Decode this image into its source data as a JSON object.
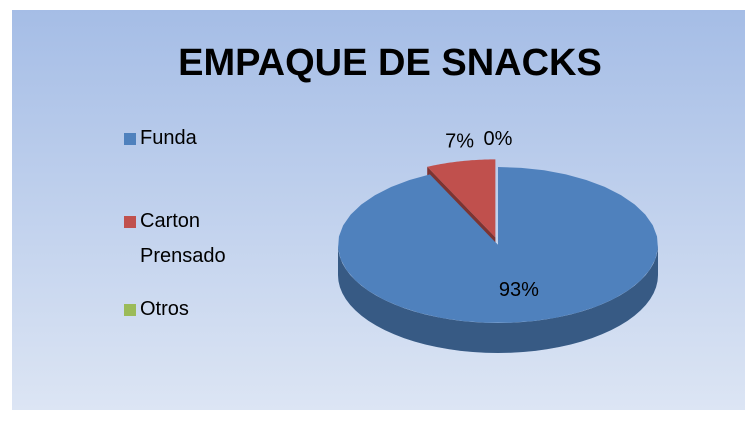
{
  "chart_data": {
    "type": "pie",
    "title": "EMPAQUE DE SNACKS",
    "categories": [
      "Funda",
      "Carton Prensado",
      "Otros"
    ],
    "values": [
      93,
      7,
      0
    ],
    "value_labels": [
      "93%",
      "7%",
      "0%"
    ],
    "colors": [
      "#4f81bd",
      "#c0504d",
      "#9bbb59"
    ],
    "legend": "left"
  }
}
